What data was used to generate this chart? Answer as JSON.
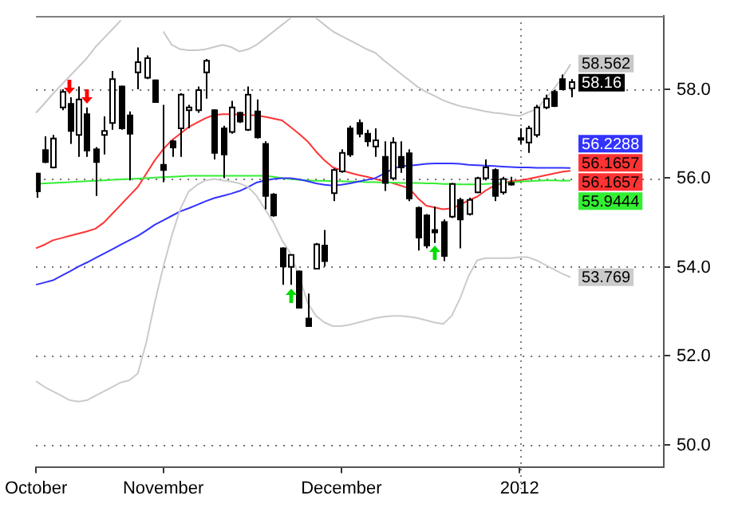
{
  "chart_data": {
    "type": "candlestick",
    "categories": [
      "October",
      null,
      null,
      null,
      null,
      null,
      null,
      null,
      null,
      null,
      null,
      null,
      null,
      null,
      null,
      "November",
      null,
      null,
      null,
      null,
      null,
      null,
      null,
      null,
      null,
      null,
      null,
      null,
      null,
      null,
      null,
      null,
      null,
      null,
      null,
      null,
      "December",
      null,
      null,
      null,
      null,
      null,
      null,
      null,
      null,
      null,
      null,
      null,
      null,
      null,
      null,
      null,
      null,
      null,
      null,
      null,
      null,
      "2012",
      null,
      null,
      null,
      null,
      null,
      null,
      null,
      null,
      null,
      null,
      null,
      null,
      null,
      null,
      null,
      null,
      null
    ],
    "ohlc": [
      [
        56.1,
        56.12,
        55.56,
        55.7
      ],
      [
        56.63,
        56.94,
        56.34,
        56.36
      ],
      [
        56.24,
        56.97,
        56.22,
        56.89
      ],
      [
        57.59,
        58.0,
        57.53,
        57.94
      ],
      [
        57.67,
        57.82,
        56.77,
        57.06
      ],
      [
        56.97,
        58.06,
        56.48,
        57.77
      ],
      [
        57.44,
        57.59,
        56.48,
        56.62
      ],
      [
        56.65,
        56.7,
        55.6,
        56.36
      ],
      [
        56.97,
        57.39,
        56.53,
        57.06
      ],
      [
        57.24,
        58.41,
        57.09,
        58.23
      ],
      [
        58.06,
        58.08,
        57.09,
        57.12
      ],
      [
        57.41,
        57.5,
        55.95,
        57.0
      ],
      [
        58.38,
        58.94,
        58.0,
        58.61
      ],
      [
        58.26,
        58.76,
        58.23,
        58.7
      ],
      [
        58.2,
        58.22,
        57.71,
        57.71
      ],
      [
        56.3,
        57.65,
        55.91,
        56.18
      ],
      [
        56.83,
        56.86,
        56.48,
        56.69
      ],
      [
        57.12,
        57.91,
        56.48,
        57.88
      ],
      [
        57.53,
        57.65,
        57.12,
        57.59
      ],
      [
        57.53,
        58.06,
        57.47,
        57.98
      ],
      [
        58.38,
        58.68,
        57.79,
        58.64
      ],
      [
        57.53,
        57.55,
        56.42,
        56.57
      ],
      [
        57.12,
        57.18,
        56.0,
        56.53
      ],
      [
        57.04,
        57.74,
        57.0,
        57.59
      ],
      [
        57.47,
        57.49,
        57.24,
        57.27
      ],
      [
        57.09,
        58.06,
        57.06,
        57.88
      ],
      [
        57.5,
        57.77,
        56.89,
        56.92
      ],
      [
        56.77,
        56.83,
        55.3,
        55.6
      ],
      [
        55.63,
        55.66,
        55.13,
        55.16
      ],
      [
        54.42,
        54.44,
        53.6,
        54.01
      ],
      [
        54.0,
        54.27,
        53.6,
        54.27
      ],
      [
        53.9,
        53.92,
        53.08,
        53.08
      ],
      [
        52.84,
        53.4,
        52.67,
        52.67
      ],
      [
        53.96,
        54.54,
        53.96,
        54.51
      ],
      [
        54.48,
        54.83,
        54.01,
        54.13
      ],
      [
        55.66,
        56.22,
        55.48,
        56.18
      ],
      [
        56.15,
        56.65,
        56.12,
        56.57
      ],
      [
        57.12,
        57.18,
        56.48,
        56.53
      ],
      [
        57.24,
        57.32,
        56.92,
        57.0
      ],
      [
        57.0,
        57.09,
        56.71,
        56.83
      ],
      [
        56.71,
        57.12,
        56.48,
        56.85
      ],
      [
        56.48,
        56.83,
        55.71,
        55.89
      ],
      [
        56.0,
        56.92,
        55.95,
        56.8
      ],
      [
        56.48,
        56.83,
        56.12,
        56.24
      ],
      [
        56.56,
        56.65,
        55.48,
        55.54
      ],
      [
        55.33,
        55.36,
        54.37,
        54.66
      ],
      [
        55.16,
        55.19,
        54.42,
        54.48
      ],
      [
        54.83,
        55.36,
        54.54,
        54.78
      ],
      [
        55.01,
        55.07,
        54.13,
        54.25
      ],
      [
        55.13,
        55.89,
        55.1,
        55.87
      ],
      [
        55.51,
        55.56,
        54.42,
        55.07
      ],
      [
        55.19,
        55.56,
        55.16,
        55.51
      ],
      [
        55.68,
        56.03,
        55.66,
        56.0
      ],
      [
        56.0,
        56.42,
        55.95,
        56.24
      ],
      [
        56.18,
        56.22,
        55.48,
        55.6
      ],
      [
        55.68,
        56.03,
        55.63,
        55.98
      ],
      [
        55.89,
        56.03,
        55.83,
        55.87
      ],
      [
        56.9,
        57.12,
        56.77,
        56.88
      ],
      [
        56.8,
        57.18,
        56.57,
        57.12
      ],
      [
        56.97,
        57.65,
        56.92,
        57.59
      ],
      [
        57.59,
        57.88,
        57.55,
        57.79
      ],
      [
        57.94,
        57.98,
        57.6,
        57.62
      ],
      [
        58.23,
        58.33,
        57.98,
        58.0
      ],
      [
        58.02,
        58.23,
        57.82,
        58.16
      ],
      null,
      null,
      null,
      null,
      null,
      null,
      null,
      null,
      null,
      null,
      null
    ],
    "series": [
      {
        "type": "line",
        "color": "#c8c8c8",
        "values": [
          57.47,
          57.68,
          57.9,
          58.1,
          58.3,
          58.5,
          58.7,
          58.95,
          59.15,
          59.35,
          59.55,
          null,
          null,
          null,
          null,
          59.3,
          59.0,
          58.9,
          58.88,
          58.88,
          58.9,
          58.95,
          59.0,
          58.95,
          58.85,
          58.9,
          59.0,
          59.15,
          59.3,
          59.45,
          59.6,
          null,
          null,
          59.6,
          59.45,
          59.3,
          59.2,
          59.1,
          59.0,
          58.9,
          58.82,
          58.65,
          58.5,
          58.35,
          58.2,
          58.05,
          57.94,
          57.85,
          57.75,
          57.68,
          57.62,
          57.58,
          57.54,
          57.5,
          57.47,
          57.45,
          57.42,
          57.4,
          57.48,
          57.55,
          57.77,
          58.0,
          58.25,
          58.562,
          null,
          null,
          null,
          null,
          null,
          null,
          null,
          null,
          null,
          null,
          null
        ],
        "value_labels": [
          null,
          null,
          null,
          null,
          null,
          null,
          null,
          null,
          null,
          null,
          null,
          null,
          null,
          null,
          null,
          null,
          null,
          null,
          null,
          null,
          null,
          null,
          null,
          null,
          null,
          null,
          null,
          null,
          null,
          null,
          null,
          null,
          null,
          null,
          null,
          null,
          null,
          null,
          null,
          null,
          null,
          null,
          null,
          null,
          null,
          null,
          null,
          null,
          null,
          null,
          null,
          null,
          null,
          null,
          null,
          null,
          null,
          null,
          null,
          null,
          null,
          null,
          null,
          "58.562",
          null,
          null,
          null,
          null,
          null,
          null,
          null,
          null,
          null,
          null,
          null
        ]
      },
      {
        "type": "line",
        "color": "#cbcbcb",
        "values": [
          51.43,
          51.3,
          51.2,
          51.1,
          51.0,
          50.97,
          51.0,
          51.1,
          51.2,
          51.3,
          51.4,
          51.45,
          51.6,
          52.3,
          53.2,
          54.0,
          54.7,
          55.3,
          55.7,
          55.85,
          55.95,
          55.98,
          55.95,
          55.92,
          55.88,
          55.8,
          55.6,
          55.3,
          55.0,
          54.6,
          54.3,
          53.8,
          53.2,
          52.9,
          52.75,
          52.67,
          52.67,
          52.7,
          52.75,
          52.8,
          52.85,
          52.88,
          52.9,
          52.9,
          52.88,
          52.85,
          52.8,
          52.75,
          52.72,
          52.9,
          53.3,
          53.8,
          54.15,
          54.2,
          54.2,
          54.2,
          54.2,
          54.22,
          54.22,
          54.15,
          54.05,
          53.95,
          53.85,
          53.769,
          null,
          null,
          null,
          null,
          null,
          null,
          null,
          null,
          null,
          null,
          null
        ],
        "value_labels": [
          null,
          null,
          null,
          null,
          null,
          null,
          null,
          null,
          null,
          null,
          null,
          null,
          null,
          null,
          null,
          null,
          null,
          null,
          null,
          null,
          null,
          null,
          null,
          null,
          null,
          null,
          null,
          null,
          null,
          null,
          null,
          null,
          null,
          null,
          null,
          null,
          null,
          null,
          null,
          null,
          null,
          null,
          null,
          null,
          null,
          null,
          null,
          null,
          null,
          null,
          null,
          null,
          null,
          null,
          null,
          null,
          null,
          null,
          null,
          null,
          null,
          null,
          null,
          "53.769",
          null,
          null,
          null,
          null,
          null,
          null,
          null,
          null,
          null,
          null,
          null
        ]
      },
      {
        "type": "line",
        "color": "#3333ff",
        "values": [
          53.6,
          53.65,
          53.7,
          53.8,
          53.9,
          54.01,
          54.1,
          54.2,
          54.3,
          54.4,
          54.5,
          54.6,
          54.7,
          54.82,
          54.95,
          55.05,
          55.15,
          55.25,
          55.32,
          55.4,
          55.48,
          55.55,
          55.6,
          55.65,
          55.71,
          55.8,
          55.9,
          55.95,
          55.98,
          56.0,
          56.0,
          55.97,
          55.93,
          55.88,
          55.85,
          55.83,
          55.85,
          55.88,
          55.92,
          55.96,
          56.0,
          56.1,
          56.2,
          56.27,
          56.28,
          56.3,
          56.32,
          56.33,
          56.33,
          56.33,
          56.32,
          56.3,
          56.29,
          56.28,
          56.27,
          56.26,
          56.25,
          56.24,
          56.24,
          56.23,
          56.23,
          56.23,
          56.23,
          56.2288,
          null,
          null,
          null,
          null,
          null,
          null,
          null,
          null,
          null,
          null,
          null
        ],
        "value_labels": [
          null,
          null,
          null,
          null,
          null,
          null,
          null,
          null,
          null,
          null,
          null,
          null,
          null,
          null,
          null,
          null,
          null,
          null,
          null,
          null,
          null,
          null,
          null,
          null,
          null,
          null,
          null,
          null,
          null,
          null,
          null,
          null,
          null,
          null,
          null,
          null,
          null,
          null,
          null,
          null,
          null,
          null,
          null,
          null,
          null,
          null,
          null,
          null,
          null,
          null,
          null,
          null,
          null,
          null,
          null,
          null,
          null,
          null,
          null,
          null,
          null,
          null,
          null,
          "56.2288",
          null,
          null,
          null,
          null,
          null,
          null,
          null,
          null,
          null,
          null,
          null
        ]
      },
      {
        "type": "line",
        "color": "#33ee33",
        "values": [
          55.87,
          55.88,
          55.89,
          55.9,
          55.91,
          55.92,
          55.93,
          55.94,
          55.95,
          55.96,
          55.97,
          55.98,
          55.99,
          56.0,
          56.01,
          56.02,
          56.03,
          56.04,
          56.05,
          56.05,
          56.05,
          56.05,
          56.05,
          56.05,
          56.05,
          56.05,
          56.05,
          56.05,
          56.03,
          56.0,
          55.98,
          55.96,
          55.95,
          55.94,
          55.94,
          55.93,
          55.93,
          55.92,
          55.92,
          55.91,
          55.91,
          55.9,
          55.9,
          55.89,
          55.89,
          55.89,
          55.88,
          55.88,
          55.87,
          55.87,
          55.86,
          55.86,
          55.86,
          55.87,
          55.88,
          55.89,
          55.9,
          55.92,
          55.93,
          55.94,
          55.95,
          55.95,
          55.94,
          55.9444,
          null,
          null,
          null,
          null,
          null,
          null,
          null,
          null,
          null,
          null,
          null
        ],
        "value_labels": [
          null,
          null,
          null,
          null,
          null,
          null,
          null,
          null,
          null,
          null,
          null,
          null,
          null,
          null,
          null,
          null,
          null,
          null,
          null,
          null,
          null,
          null,
          null,
          null,
          null,
          null,
          null,
          null,
          null,
          null,
          null,
          null,
          null,
          null,
          null,
          null,
          null,
          null,
          null,
          null,
          null,
          null,
          null,
          null,
          null,
          null,
          null,
          null,
          null,
          null,
          null,
          null,
          null,
          null,
          null,
          null,
          null,
          null,
          null,
          null,
          null,
          null,
          null,
          "55.9444",
          null,
          null,
          null,
          null,
          null,
          null,
          null,
          null,
          null,
          null,
          null
        ]
      },
      {
        "type": "line",
        "color": "#ff3333",
        "values": [
          54.42,
          54.5,
          54.6,
          54.65,
          54.7,
          54.75,
          54.8,
          54.86,
          55.0,
          55.2,
          55.4,
          55.6,
          55.8,
          56.1,
          56.4,
          56.65,
          56.85,
          57.0,
          57.15,
          57.25,
          57.35,
          57.42,
          57.44,
          57.44,
          57.43,
          57.42,
          57.41,
          57.38,
          57.34,
          57.3,
          57.15,
          57.0,
          56.83,
          56.6,
          56.4,
          56.24,
          56.18,
          56.12,
          56.07,
          56.03,
          55.98,
          55.93,
          55.89,
          55.83,
          55.77,
          55.55,
          55.38,
          55.34,
          55.3,
          55.32,
          55.4,
          55.5,
          55.58,
          55.72,
          55.83,
          55.88,
          55.93,
          55.95,
          55.98,
          56.02,
          56.06,
          56.1,
          56.14,
          56.1657,
          null,
          null,
          null,
          null,
          null,
          null,
          null,
          null,
          null,
          null,
          null
        ],
        "value_labels": [
          null,
          null,
          null,
          null,
          null,
          null,
          null,
          null,
          null,
          null,
          null,
          null,
          null,
          null,
          null,
          null,
          null,
          null,
          null,
          null,
          null,
          null,
          null,
          null,
          null,
          null,
          null,
          null,
          null,
          null,
          null,
          null,
          null,
          null,
          null,
          null,
          null,
          null,
          null,
          null,
          null,
          null,
          null,
          null,
          null,
          null,
          null,
          null,
          null,
          null,
          null,
          null,
          null,
          null,
          null,
          null,
          null,
          null,
          null,
          null,
          null,
          null,
          null,
          "56.1657",
          null,
          null,
          null,
          null,
          null,
          null,
          null,
          null,
          null,
          null,
          null
        ]
      }
    ],
    "ylim": [
      49.5,
      59.65
    ],
    "yticks": [
      {
        "value": 50,
        "label": "50.0"
      },
      {
        "value": 52,
        "label": "52.0"
      },
      {
        "value": 54,
        "label": "54.0"
      },
      {
        "value": 56,
        "label": "56.0"
      },
      {
        "value": 58,
        "label": "58.0"
      }
    ],
    "grid": "y",
    "marker": "none",
    "ref_lines": [
      {
        "axis": "x",
        "value": "2012",
        "line_style": "dotted",
        "color": "#808080"
      }
    ],
    "annotations": [
      "58.16",
      "56.1657"
    ]
  }
}
